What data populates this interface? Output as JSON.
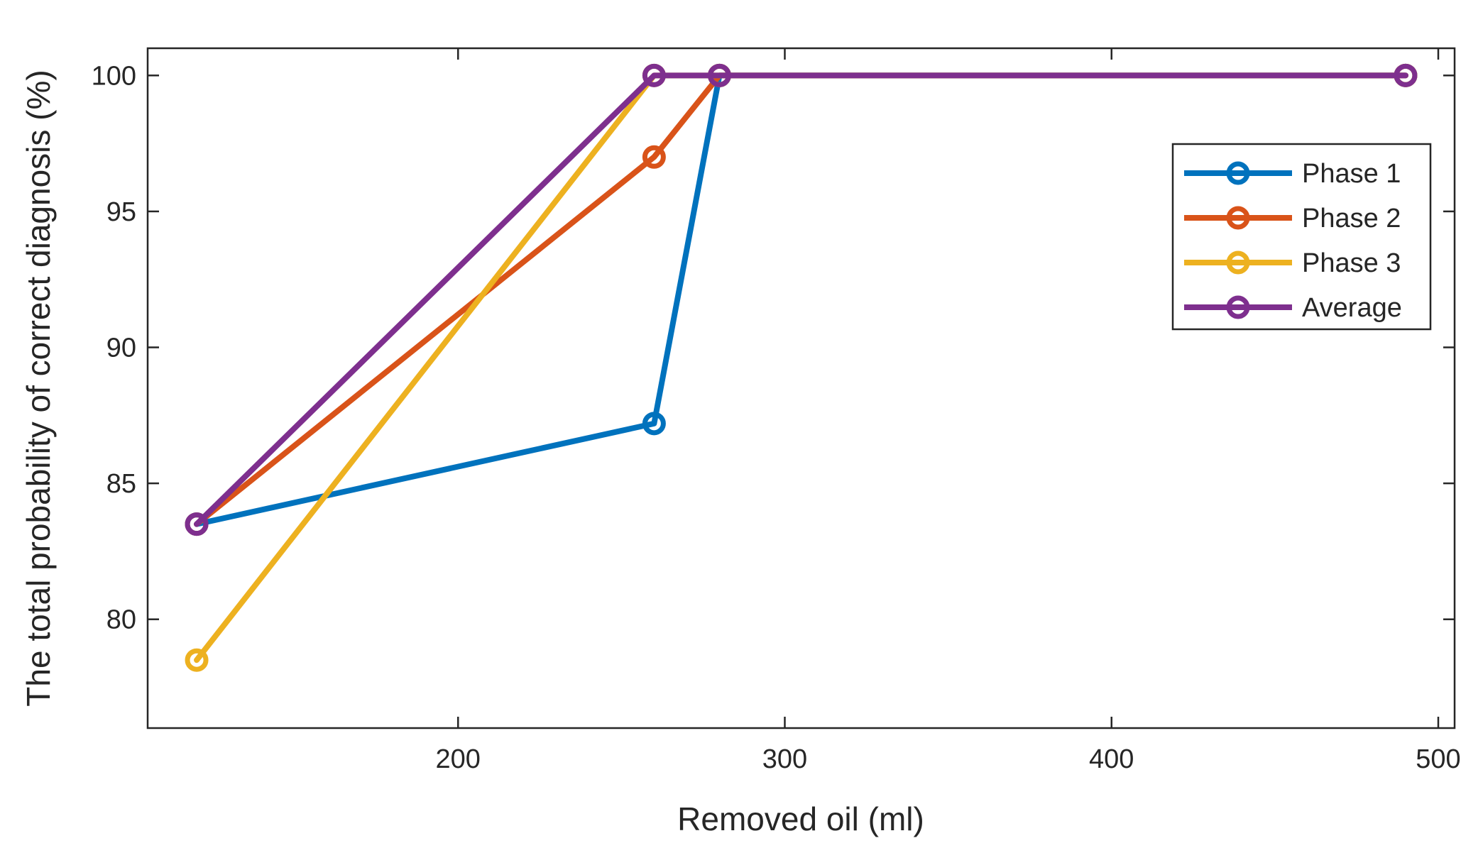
{
  "chart_data": {
    "type": "line",
    "xlabel": "Removed oil (ml)",
    "ylabel": "The total probability of correct diagnosis (%)",
    "xlim": [
      105,
      505
    ],
    "ylim": [
      76,
      101
    ],
    "xticks": [
      200,
      300,
      400,
      500
    ],
    "yticks": [
      80,
      85,
      90,
      95,
      100
    ],
    "grid": false,
    "legend_position": "top-right",
    "series": [
      {
        "name": "Phase 1",
        "color": "#0072BD",
        "x": [
          120,
          260,
          280,
          490
        ],
        "y": [
          83.5,
          87.2,
          100,
          100
        ]
      },
      {
        "name": "Phase 2",
        "color": "#D95319",
        "x": [
          120,
          260,
          280,
          490
        ],
        "y": [
          83.5,
          97.0,
          100,
          100
        ]
      },
      {
        "name": "Phase 3",
        "color": "#EDB120",
        "x": [
          120,
          260,
          280,
          490
        ],
        "y": [
          78.5,
          100,
          100,
          100
        ]
      },
      {
        "name": "Average",
        "color": "#7E2F8E",
        "x": [
          120,
          260,
          280,
          490
        ],
        "y": [
          83.5,
          100,
          100,
          100
        ]
      }
    ]
  }
}
